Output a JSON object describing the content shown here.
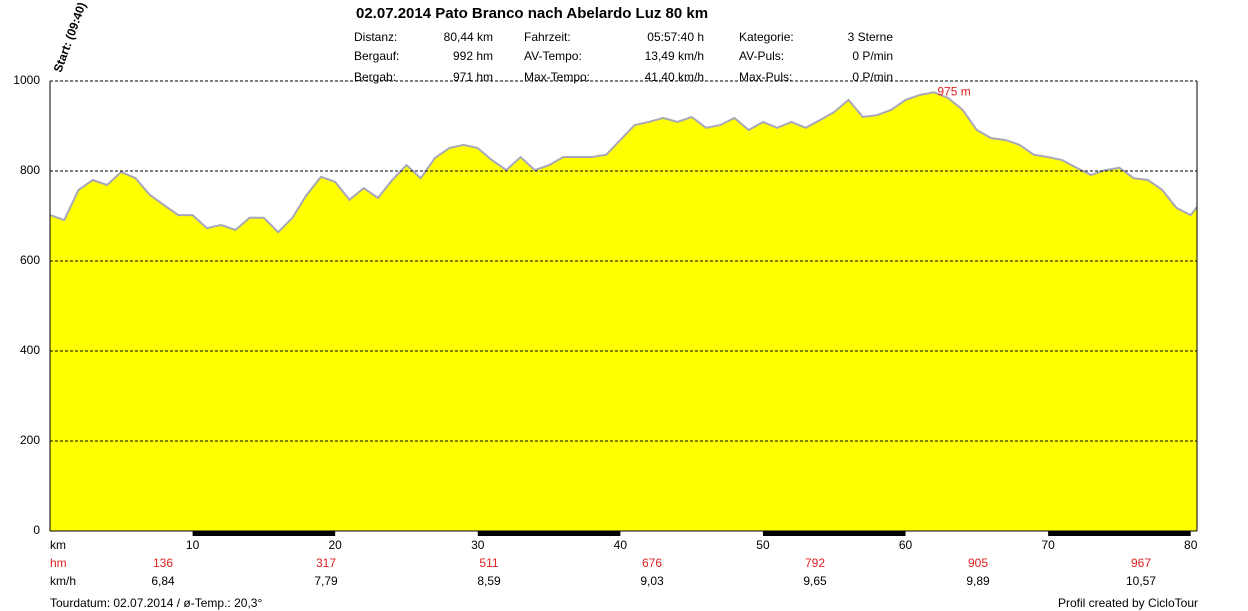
{
  "chart_data": {
    "type": "area",
    "title": "02.07.2014 Pato Branco nach Abelardo Luz 80 km",
    "start_label": "Start: (09:40)",
    "info": [
      [
        {
          "label": "Distanz:",
          "value": "80,44 km"
        },
        {
          "label": "Fahrzeit:",
          "value": "05:57:40 h"
        },
        {
          "label": "Kategorie:",
          "value": "3 Sterne"
        }
      ],
      [
        {
          "label": "Bergauf:",
          "value": "992 hm"
        },
        {
          "label": "AV-Tempo:",
          "value": "13,49 km/h"
        },
        {
          "label": "AV-Puls:",
          "value": "0 P/min"
        }
      ],
      [
        {
          "label": "Bergab:",
          "value": "971 hm"
        },
        {
          "label": "Max-Tempo:",
          "value": "41,40 km/h"
        },
        {
          "label": "Max-Puls:",
          "value": "0 P/min"
        }
      ]
    ],
    "x": [
      0,
      1,
      2,
      3,
      4,
      5,
      6,
      7,
      8,
      9,
      10,
      11,
      12,
      13,
      14,
      15,
      16,
      17,
      18,
      19,
      20,
      21,
      22,
      23,
      24,
      25,
      26,
      27,
      28,
      29,
      30,
      31,
      32,
      33,
      34,
      35,
      36,
      37,
      38,
      39,
      40,
      41,
      42,
      43,
      44,
      45,
      46,
      47,
      48,
      49,
      50,
      51,
      52,
      53,
      54,
      55,
      56,
      57,
      58,
      59,
      60,
      61,
      62,
      63,
      64,
      65,
      66,
      67,
      68,
      69,
      70,
      71,
      72,
      73,
      74,
      75,
      76,
      77,
      78,
      79,
      80,
      80.44
    ],
    "series": [
      {
        "color": "#ffff00",
        "line_color": "#a8a8b8",
        "values": [
          702,
          691,
          758,
          780,
          769,
          798,
          784,
          747,
          724,
          702,
          702,
          673,
          680,
          669,
          696,
          696,
          664,
          696,
          747,
          787,
          776,
          736,
          762,
          740,
          780,
          813,
          784,
          829,
          851,
          858,
          851,
          824,
          802,
          831,
          802,
          813,
          831,
          831,
          831,
          836,
          869,
          902,
          909,
          918,
          909,
          920,
          896,
          902,
          918,
          891,
          909,
          896,
          909,
          896,
          913,
          931,
          958,
          920,
          924,
          936,
          958,
          969,
          975,
          962,
          936,
          891,
          873,
          869,
          858,
          836,
          831,
          824,
          807,
          791,
          802,
          807,
          784,
          780,
          758,
          718,
          702,
          720
        ]
      }
    ],
    "annotations": [
      {
        "x": 62,
        "y": 975,
        "text": "975 m"
      }
    ],
    "xlim": [
      0,
      80.44
    ],
    "ylim": [
      0,
      1000
    ],
    "yticks": [
      0,
      200,
      400,
      600,
      800,
      1000
    ],
    "xticks": [
      10,
      20,
      30,
      40,
      50,
      60,
      70,
      80
    ],
    "x_unit": "km",
    "grid": true,
    "rows": [
      {
        "label": "hm",
        "color": "#e02020",
        "values": [
          "136",
          "317",
          "511",
          "676",
          "792",
          "905",
          "967"
        ]
      },
      {
        "label": "km/h",
        "color": "#000000",
        "values": [
          "6,84",
          "7,79",
          "8,59",
          "9,03",
          "9,65",
          "9,89",
          "10,57"
        ]
      }
    ],
    "footer_left": "Tourdatum: 02.07.2014  /  ø-Temp.: 20,3°",
    "footer_right": "Profil created by CicloTour"
  }
}
